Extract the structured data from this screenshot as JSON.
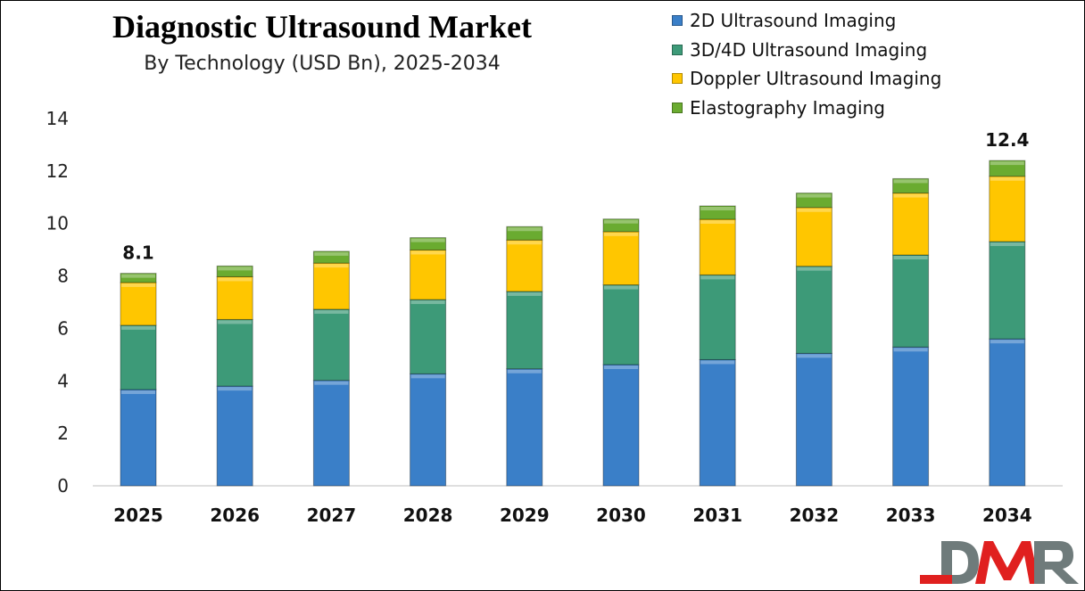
{
  "chart_data": {
    "type": "bar",
    "stacked": true,
    "title": "Diagnostic Ultrasound Market",
    "subtitle": "By Technology (USD Bn), 2025-2034",
    "xlabel": "",
    "ylabel": "",
    "categories": [
      "2025",
      "2026",
      "2027",
      "2028",
      "2029",
      "2030",
      "2031",
      "2032",
      "2033",
      "2034"
    ],
    "ylim": [
      0,
      14
    ],
    "yticks": [
      0,
      2,
      4,
      6,
      8,
      10,
      12,
      14
    ],
    "grid": false,
    "legend_position": "top-right",
    "series": [
      {
        "name": "2D Ultrasound Imaging",
        "color": "#3a7fc8",
        "values": [
          3.67,
          3.8,
          4.02,
          4.27,
          4.46,
          4.62,
          4.81,
          5.05,
          5.29,
          5.6
        ]
      },
      {
        "name": "3D/4D Ultrasound Imaging",
        "color": "#3d9a78",
        "values": [
          2.45,
          2.54,
          2.71,
          2.83,
          2.95,
          3.04,
          3.23,
          3.32,
          3.51,
          3.71
        ]
      },
      {
        "name": "Doppler Ultrasound Imaging",
        "color": "#ffc600",
        "values": [
          1.63,
          1.63,
          1.76,
          1.89,
          1.96,
          2.03,
          2.12,
          2.24,
          2.36,
          2.49
        ]
      },
      {
        "name": "Elastography Imaging",
        "color": "#6aab30",
        "values": [
          0.35,
          0.41,
          0.45,
          0.47,
          0.51,
          0.48,
          0.51,
          0.55,
          0.55,
          0.6
        ]
      }
    ],
    "data_labels": {
      "2025": "8.1",
      "2034": "12.4"
    }
  },
  "logo": {
    "text": "DMR",
    "colors": {
      "gray": "#6f7b7b",
      "red": "#e0201f"
    }
  }
}
